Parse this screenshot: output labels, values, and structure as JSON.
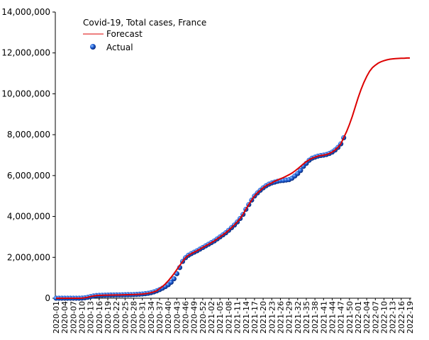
{
  "chart_data": {
    "type": "line",
    "title": "Covid-19, Total cases, France",
    "categories": [
      "2020-01",
      null,
      null,
      "2020-04",
      null,
      null,
      "2020-07",
      null,
      null,
      "2020-10",
      null,
      null,
      "2020-13",
      null,
      null,
      "2020-16",
      null,
      null,
      "2020-19",
      null,
      null,
      "2020-22",
      null,
      null,
      "2020-25",
      null,
      null,
      "2020-28",
      null,
      null,
      "2020-31",
      null,
      null,
      "2020-34",
      null,
      null,
      "2020-37",
      null,
      null,
      "2020-40",
      null,
      null,
      "2020-43",
      null,
      null,
      "2020-46",
      null,
      null,
      "2020-49",
      null,
      null,
      "2020-52",
      null,
      null,
      "2021-02",
      null,
      null,
      "2021-05",
      null,
      null,
      "2021-08",
      null,
      null,
      "2021-11",
      null,
      null,
      "2021-14",
      null,
      null,
      "2021-17",
      null,
      null,
      "2021-20",
      null,
      null,
      "2021-23",
      null,
      null,
      "2021-26",
      null,
      null,
      "2021-29",
      null,
      null,
      "2021-32",
      null,
      null,
      "2021-35",
      null,
      null,
      "2021-38",
      null,
      null,
      "2021-41",
      null,
      null,
      "2021-44",
      null,
      null,
      "2021-47",
      null,
      null,
      "2021-50",
      null,
      null,
      "2022-01",
      null,
      null,
      "2022-04",
      null,
      null,
      "2022-07",
      null,
      null,
      "2022-10",
      null,
      null,
      "2022-13",
      null,
      null,
      "2022-16",
      null,
      null,
      "2022-19"
    ],
    "series": [
      {
        "name": "Forecast",
        "color": "#dd0000",
        "values": [
          0,
          0,
          0,
          0,
          0,
          0,
          0,
          0,
          1000,
          5000,
          20000,
          45000,
          80000,
          110000,
          130000,
          140000,
          145000,
          150000,
          152000,
          155000,
          157000,
          160000,
          162000,
          165000,
          168000,
          172000,
          176000,
          180000,
          187000,
          195000,
          205000,
          220000,
          240000,
          270000,
          310000,
          360000,
          470000,
          570000,
          700000,
          850000,
          1020000,
          1200000,
          1400000,
          1600000,
          1800000,
          1980000,
          2100000,
          2180000,
          2250000,
          2320000,
          2400000,
          2480000,
          2560000,
          2640000,
          2720000,
          2800000,
          2900000,
          3000000,
          3100000,
          3200000,
          3320000,
          3450000,
          3580000,
          3730000,
          3900000,
          4100000,
          4350000,
          4580000,
          4800000,
          5000000,
          5150000,
          5280000,
          5400000,
          5500000,
          5580000,
          5640000,
          5720000,
          5780000,
          5840000,
          5900000,
          5970000,
          6040000,
          6120000,
          6220000,
          6330000,
          6450000,
          6570000,
          6680000,
          6770000,
          6850000,
          6900000,
          6950000,
          6980000,
          7000000,
          7030000,
          7080000,
          7150000,
          7250000,
          7380000,
          7550000,
          7850000,
          8150000,
          8500000,
          8900000,
          9350000,
          9800000,
          10200000,
          10550000,
          10850000,
          11100000,
          11280000,
          11400000,
          11500000,
          11570000,
          11620000,
          11660000,
          11690000,
          11710000,
          11720000,
          11730000,
          11740000,
          11740000,
          11750000,
          11750000
        ]
      },
      {
        "name": "Actual",
        "color": "#1f5fd6",
        "values": [
          0,
          0,
          0,
          0,
          0,
          0,
          0,
          0,
          1000,
          5000,
          20000,
          45000,
          80000,
          110000,
          130000,
          140000,
          145000,
          150000,
          152000,
          155000,
          157000,
          160000,
          162000,
          165000,
          168000,
          172000,
          176000,
          180000,
          187000,
          195000,
          205000,
          220000,
          240000,
          270000,
          310000,
          360000,
          420000,
          490000,
          570000,
          660000,
          780000,
          950000,
          1200000,
          1500000,
          1800000,
          1980000,
          2100000,
          2180000,
          2250000,
          2320000,
          2400000,
          2480000,
          2560000,
          2640000,
          2720000,
          2800000,
          2900000,
          3000000,
          3100000,
          3200000,
          3320000,
          3450000,
          3580000,
          3730000,
          3900000,
          4100000,
          4350000,
          4580000,
          4800000,
          5000000,
          5150000,
          5280000,
          5400000,
          5500000,
          5580000,
          5640000,
          5680000,
          5720000,
          5750000,
          5760000,
          5780000,
          5800000,
          5870000,
          5980000,
          6100000,
          6250000,
          6450000,
          6600000,
          6750000,
          6850000,
          6900000,
          6950000,
          6980000,
          7000000,
          7030000,
          7080000,
          7150000,
          7250000,
          7380000,
          7550000,
          7850000,
          null,
          null,
          null,
          null,
          null,
          null,
          null,
          null,
          null,
          null,
          null,
          null,
          null,
          null,
          null,
          null,
          null,
          null,
          null,
          null,
          null,
          null,
          null
        ]
      }
    ],
    "ylim": [
      0,
      14000000
    ],
    "yticks": [
      {
        "value": 0,
        "label": "0"
      },
      {
        "value": 2000000,
        "label": "2,000,000"
      },
      {
        "value": 4000000,
        "label": "4,000,000"
      },
      {
        "value": 6000000,
        "label": "6,000,000"
      },
      {
        "value": 8000000,
        "label": "8,000,000"
      },
      {
        "value": 10000000,
        "label": "10,000,000"
      },
      {
        "value": 12000000,
        "label": "12,000,000"
      },
      {
        "value": 14000000,
        "label": "14,000,000"
      }
    ],
    "grid": false
  }
}
